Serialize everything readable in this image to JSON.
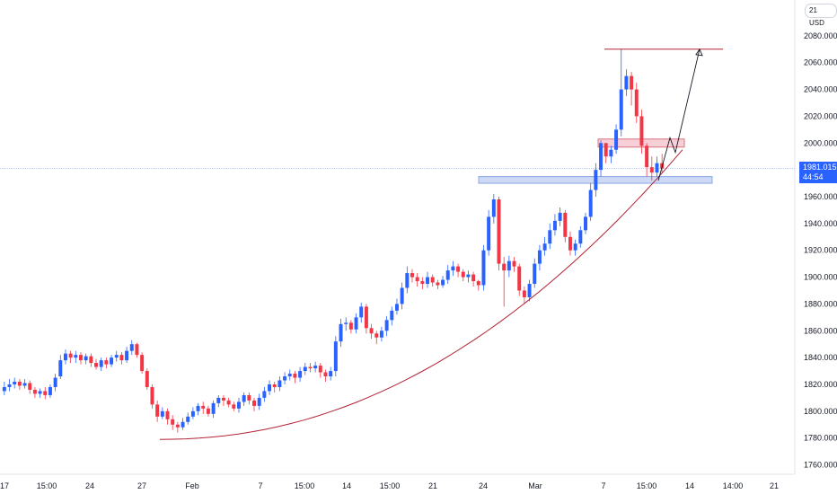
{
  "currency": "USD",
  "axis_top_label": "21",
  "price_axis": {
    "ticks": [
      "2080.000",
      "2060.000",
      "2040.000",
      "2020.000",
      "2000.000",
      "1960.000",
      "1940.000",
      "1920.000",
      "1900.000",
      "1880.000",
      "1860.000",
      "1840.000",
      "1820.000",
      "1800.000",
      "1780.000",
      "1760.000"
    ],
    "tick_values": [
      2080,
      2060,
      2040,
      2020,
      2000,
      1960,
      1940,
      1920,
      1900,
      1880,
      1860,
      1840,
      1820,
      1800,
      1780,
      1760
    ],
    "range": [
      1753,
      2100
    ]
  },
  "time_axis": {
    "labels": [
      "17",
      "15:00",
      "24",
      "27",
      "Feb",
      "7",
      "15:00",
      "14",
      "15:00",
      "21",
      "24",
      "Mar",
      "7",
      "15:00",
      "14",
      "14:00",
      "21"
    ]
  },
  "last_price": {
    "value": "1981.015",
    "countdown": "44:54"
  },
  "colors": {
    "up": "#2962ff",
    "down": "#f23645",
    "trendline": "#b22234",
    "zone_blue": "#b3c7f5",
    "zone_red": "#f7c3cb"
  },
  "chart_data": {
    "type": "candlestick",
    "ylim": [
      1753,
      2100
    ],
    "closes": [
      1818,
      1820,
      1822,
      1819,
      1821,
      1816,
      1813,
      1815,
      1812,
      1818,
      1825,
      1838,
      1843,
      1840,
      1842,
      1838,
      1841,
      1836,
      1833,
      1838,
      1835,
      1840,
      1842,
      1838,
      1845,
      1850,
      1842,
      1830,
      1818,
      1805,
      1796,
      1800,
      1794,
      1790,
      1788,
      1792,
      1796,
      1800,
      1804,
      1802,
      1798,
      1806,
      1810,
      1808,
      1805,
      1802,
      1807,
      1812,
      1808,
      1804,
      1810,
      1815,
      1820,
      1818,
      1823,
      1826,
      1828,
      1825,
      1830,
      1833,
      1832,
      1834,
      1829,
      1826,
      1830,
      1852,
      1865,
      1866,
      1861,
      1870,
      1878,
      1862,
      1858,
      1855,
      1860,
      1868,
      1875,
      1880,
      1892,
      1903,
      1900,
      1897,
      1895,
      1900,
      1896,
      1894,
      1898,
      1905,
      1908,
      1904,
      1900,
      1902,
      1897,
      1894,
      1920,
      1945,
      1958,
      1910,
      1905,
      1912,
      1908,
      1890,
      1885,
      1895,
      1910,
      1920,
      1925,
      1935,
      1942,
      1948,
      1930,
      1920,
      1925,
      1935,
      1945,
      1965,
      1980,
      2000,
      1990,
      1995,
      2010,
      2040,
      2050,
      2040,
      2020,
      1998,
      1982,
      1978,
      1985,
      1981
    ],
    "opens": [
      1815,
      1818,
      1820,
      1822,
      1819,
      1821,
      1816,
      1813,
      1815,
      1812,
      1818,
      1826,
      1838,
      1843,
      1840,
      1842,
      1838,
      1841,
      1836,
      1833,
      1838,
      1835,
      1840,
      1842,
      1838,
      1845,
      1850,
      1842,
      1830,
      1818,
      1805,
      1796,
      1800,
      1794,
      1790,
      1788,
      1792,
      1796,
      1800,
      1804,
      1802,
      1798,
      1806,
      1810,
      1808,
      1805,
      1802,
      1807,
      1812,
      1808,
      1804,
      1810,
      1815,
      1820,
      1818,
      1823,
      1826,
      1828,
      1825,
      1830,
      1833,
      1832,
      1834,
      1829,
      1826,
      1830,
      1852,
      1865,
      1866,
      1861,
      1870,
      1878,
      1862,
      1858,
      1855,
      1860,
      1868,
      1875,
      1880,
      1892,
      1903,
      1900,
      1897,
      1895,
      1900,
      1896,
      1894,
      1898,
      1905,
      1908,
      1904,
      1900,
      1902,
      1897,
      1894,
      1920,
      1945,
      1958,
      1910,
      1905,
      1912,
      1908,
      1890,
      1885,
      1895,
      1910,
      1920,
      1925,
      1935,
      1942,
      1948,
      1930,
      1920,
      1925,
      1935,
      1945,
      1965,
      1980,
      2000,
      1990,
      1995,
      2010,
      2040,
      2050,
      2040,
      2020,
      1998,
      1982,
      1978,
      1985
    ],
    "highs": [
      1822,
      1824,
      1825,
      1824,
      1824,
      1823,
      1818,
      1817,
      1818,
      1820,
      1828,
      1842,
      1846,
      1845,
      1845,
      1844,
      1843,
      1843,
      1839,
      1840,
      1840,
      1842,
      1845,
      1844,
      1848,
      1853,
      1851,
      1844,
      1832,
      1820,
      1808,
      1803,
      1802,
      1797,
      1792,
      1795,
      1799,
      1803,
      1806,
      1807,
      1804,
      1808,
      1812,
      1812,
      1810,
      1807,
      1810,
      1814,
      1814,
      1810,
      1813,
      1818,
      1823,
      1822,
      1826,
      1829,
      1831,
      1830,
      1833,
      1836,
      1836,
      1837,
      1836,
      1831,
      1833,
      1856,
      1869,
      1870,
      1868,
      1873,
      1881,
      1880,
      1865,
      1860,
      1863,
      1871,
      1878,
      1884,
      1896,
      1908,
      1906,
      1903,
      1900,
      1904,
      1902,
      1898,
      1901,
      1909,
      1912,
      1910,
      1906,
      1905,
      1904,
      1898,
      1924,
      1950,
      1962,
      1960,
      1915,
      1916,
      1915,
      1910,
      1893,
      1898,
      1914,
      1924,
      1930,
      1940,
      1947,
      1952,
      1950,
      1934,
      1928,
      1938,
      1948,
      1970,
      1985,
      2002,
      2000,
      1998,
      2014,
      2070,
      2055,
      2053,
      2045,
      2025,
      2000,
      1990,
      1990,
      1992
    ],
    "lows": [
      1812,
      1815,
      1817,
      1816,
      1817,
      1813,
      1810,
      1810,
      1809,
      1810,
      1815,
      1824,
      1835,
      1836,
      1836,
      1835,
      1835,
      1833,
      1831,
      1830,
      1832,
      1833,
      1837,
      1835,
      1836,
      1842,
      1840,
      1828,
      1816,
      1802,
      1792,
      1794,
      1790,
      1786,
      1784,
      1786,
      1790,
      1794,
      1797,
      1798,
      1796,
      1795,
      1803,
      1804,
      1803,
      1800,
      1799,
      1804,
      1805,
      1800,
      1801,
      1807,
      1812,
      1814,
      1815,
      1820,
      1823,
      1821,
      1822,
      1827,
      1829,
      1829,
      1825,
      1822,
      1823,
      1826,
      1848,
      1860,
      1858,
      1858,
      1866,
      1858,
      1854,
      1850,
      1852,
      1856,
      1864,
      1872,
      1876,
      1888,
      1896,
      1893,
      1891,
      1892,
      1893,
      1891,
      1892,
      1895,
      1901,
      1900,
      1897,
      1896,
      1893,
      1890,
      1890,
      1916,
      1940,
      1905,
      1878,
      1900,
      1904,
      1886,
      1880,
      1882,
      1892,
      1905,
      1916,
      1921,
      1931,
      1938,
      1926,
      1916,
      1916,
      1922,
      1932,
      1942,
      1960,
      1975,
      1985,
      1985,
      1992,
      2005,
      2035,
      2028,
      2015,
      1992,
      1975,
      1972,
      1975,
      1978
    ]
  },
  "drawings": {
    "top_target_price": 2070,
    "resistance_zone": [
      1997,
      2003
    ],
    "support_zone": [
      1970,
      1975
    ],
    "current_price_line": 1981
  }
}
